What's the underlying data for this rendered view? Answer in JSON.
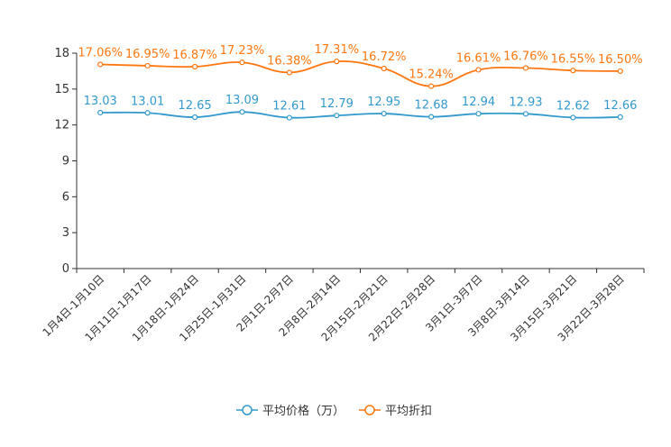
{
  "chart_data": {
    "type": "line",
    "categories": [
      "1月4日-1月10日",
      "1月11日-1月17日",
      "1月18日-1月24日",
      "1月25日-1月31日",
      "2月1日-2月7日",
      "2月8日-2月14日",
      "2月15日-2月21日",
      "2月22日-2月28日",
      "3月1日-3月7日",
      "3月8日-3月14日",
      "3月15日-3月21日",
      "3月22日-3月28日"
    ],
    "series": [
      {
        "name": "平均价格（万）",
        "color": "#3399cc",
        "values": [
          13.03,
          13.01,
          12.65,
          13.09,
          12.61,
          12.79,
          12.95,
          12.68,
          12.94,
          12.93,
          12.62,
          12.66
        ],
        "labels": [
          "13.03",
          "13.01",
          "12.65",
          "13.09",
          "12.61",
          "12.79",
          "12.95",
          "12.68",
          "12.94",
          "12.93",
          "12.62",
          "12.66"
        ]
      },
      {
        "name": "平均折扣",
        "color": "#ff7711",
        "values": [
          17.06,
          16.95,
          16.87,
          17.23,
          16.38,
          17.31,
          16.72,
          15.24,
          16.61,
          16.76,
          16.55,
          16.5
        ],
        "labels": [
          "17.06%",
          "16.95%",
          "16.87%",
          "17.23%",
          "16.38%",
          "17.31%",
          "16.72%",
          "15.24%",
          "16.61%",
          "16.76%",
          "16.55%",
          "16.50%"
        ]
      }
    ],
    "yticks": [
      "0",
      "3",
      "6",
      "9",
      "12",
      "15",
      "18"
    ],
    "ylim": [
      0,
      18
    ],
    "title": "",
    "xlabel": "",
    "ylabel": "",
    "legend_position": "bottom-center"
  }
}
